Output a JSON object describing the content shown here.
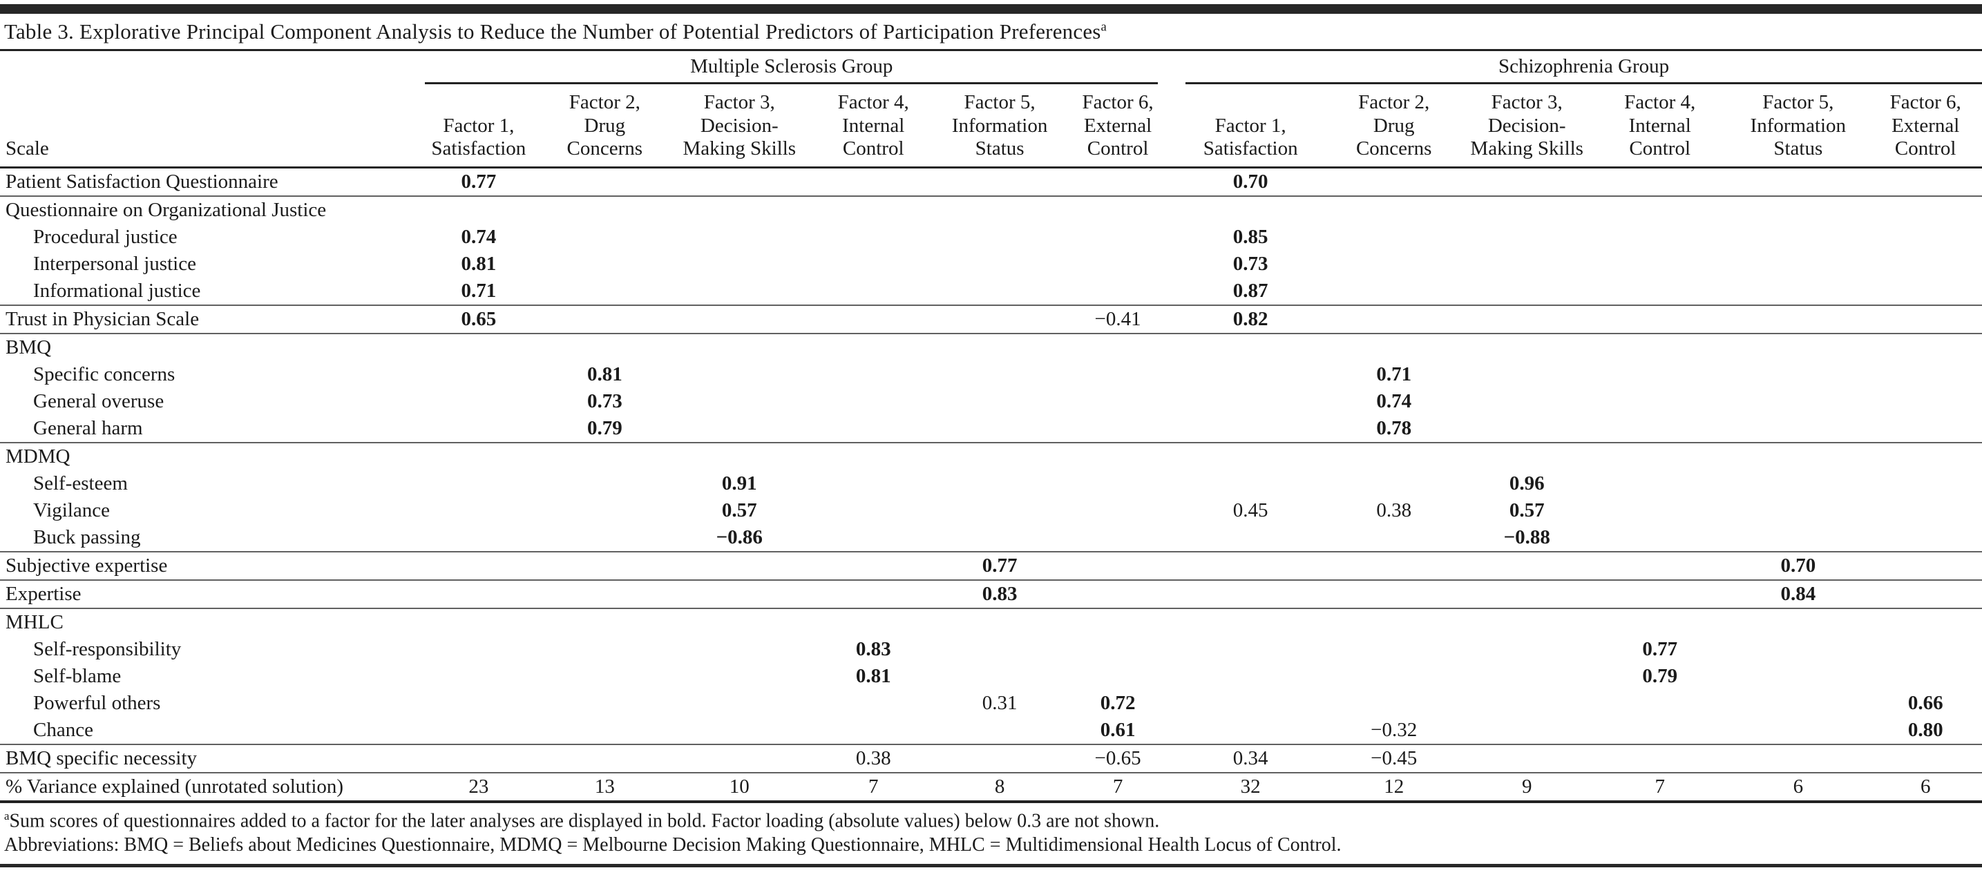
{
  "table": {
    "title": "Table 3. Explorative Principal Component Analysis to Reduce the Number of Potential Predictors of Participation Preferences",
    "title_superscript": "a",
    "group_headers": [
      "Multiple Sclerosis Group",
      "Schizophrenia Group"
    ],
    "scale_column_header": "Scale",
    "factor_columns": [
      {
        "lines": [
          "Factor 1,",
          "Satisfaction"
        ]
      },
      {
        "lines": [
          "Factor 2,",
          "Drug",
          "Concerns"
        ]
      },
      {
        "lines": [
          "Factor 3,",
          "Decision-",
          "Making Skills"
        ]
      },
      {
        "lines": [
          "Factor 4,",
          "Internal",
          "Control"
        ]
      },
      {
        "lines": [
          "Factor 5,",
          "Information",
          "Status"
        ]
      },
      {
        "lines": [
          "Factor 6,",
          "External",
          "Control"
        ]
      }
    ],
    "rows": [
      {
        "label": "Patient Satisfaction Questionnaire",
        "indent": false,
        "rule_after": true,
        "cells": [
          {
            "col": 0,
            "v": "0.77",
            "b": true
          },
          {
            "col": 6,
            "v": "0.70",
            "b": true
          }
        ]
      },
      {
        "label": "Questionnaire on Organizational Justice",
        "indent": false,
        "rule_after": false,
        "cells": []
      },
      {
        "label": "Procedural justice",
        "indent": true,
        "rule_after": false,
        "cells": [
          {
            "col": 0,
            "v": "0.74",
            "b": true
          },
          {
            "col": 6,
            "v": "0.85",
            "b": true
          }
        ]
      },
      {
        "label": "Interpersonal justice",
        "indent": true,
        "rule_after": false,
        "cells": [
          {
            "col": 0,
            "v": "0.81",
            "b": true
          },
          {
            "col": 6,
            "v": "0.73",
            "b": true
          }
        ]
      },
      {
        "label": "Informational justice",
        "indent": true,
        "rule_after": true,
        "cells": [
          {
            "col": 0,
            "v": "0.71",
            "b": true
          },
          {
            "col": 6,
            "v": "0.87",
            "b": true
          }
        ]
      },
      {
        "label": "Trust in Physician Scale",
        "indent": false,
        "rule_after": true,
        "cells": [
          {
            "col": 0,
            "v": "0.65",
            "b": true
          },
          {
            "col": 5,
            "v": "−0.41",
            "b": false
          },
          {
            "col": 6,
            "v": "0.82",
            "b": true
          }
        ]
      },
      {
        "label": "BMQ",
        "indent": false,
        "rule_after": false,
        "cells": []
      },
      {
        "label": "Specific concerns",
        "indent": true,
        "rule_after": false,
        "cells": [
          {
            "col": 1,
            "v": "0.81",
            "b": true
          },
          {
            "col": 7,
            "v": "0.71",
            "b": true
          }
        ]
      },
      {
        "label": "General overuse",
        "indent": true,
        "rule_after": false,
        "cells": [
          {
            "col": 1,
            "v": "0.73",
            "b": true
          },
          {
            "col": 7,
            "v": "0.74",
            "b": true
          }
        ]
      },
      {
        "label": "General harm",
        "indent": true,
        "rule_after": true,
        "cells": [
          {
            "col": 1,
            "v": "0.79",
            "b": true
          },
          {
            "col": 7,
            "v": "0.78",
            "b": true
          }
        ]
      },
      {
        "label": "MDMQ",
        "indent": false,
        "rule_after": false,
        "cells": []
      },
      {
        "label": "Self-esteem",
        "indent": true,
        "rule_after": false,
        "cells": [
          {
            "col": 2,
            "v": "0.91",
            "b": true
          },
          {
            "col": 8,
            "v": "0.96",
            "b": true
          }
        ]
      },
      {
        "label": "Vigilance",
        "indent": true,
        "rule_after": false,
        "cells": [
          {
            "col": 2,
            "v": "0.57",
            "b": true
          },
          {
            "col": 6,
            "v": "0.45",
            "b": false
          },
          {
            "col": 7,
            "v": "0.38",
            "b": false
          },
          {
            "col": 8,
            "v": "0.57",
            "b": true
          }
        ]
      },
      {
        "label": "Buck passing",
        "indent": true,
        "rule_after": true,
        "cells": [
          {
            "col": 2,
            "v": "−0.86",
            "b": true
          },
          {
            "col": 8,
            "v": "−0.88",
            "b": true
          }
        ]
      },
      {
        "label": "Subjective expertise",
        "indent": false,
        "rule_after": true,
        "cells": [
          {
            "col": 4,
            "v": "0.77",
            "b": true
          },
          {
            "col": 10,
            "v": "0.70",
            "b": true
          }
        ]
      },
      {
        "label": "Expertise",
        "indent": false,
        "rule_after": true,
        "cells": [
          {
            "col": 4,
            "v": "0.83",
            "b": true
          },
          {
            "col": 10,
            "v": "0.84",
            "b": true
          }
        ]
      },
      {
        "label": "MHLC",
        "indent": false,
        "rule_after": false,
        "cells": []
      },
      {
        "label": "Self-responsibility",
        "indent": true,
        "rule_after": false,
        "cells": [
          {
            "col": 3,
            "v": "0.83",
            "b": true
          },
          {
            "col": 9,
            "v": "0.77",
            "b": true
          }
        ]
      },
      {
        "label": "Self-blame",
        "indent": true,
        "rule_after": false,
        "cells": [
          {
            "col": 3,
            "v": "0.81",
            "b": true
          },
          {
            "col": 9,
            "v": "0.79",
            "b": true
          }
        ]
      },
      {
        "label": "Powerful others",
        "indent": true,
        "rule_after": false,
        "cells": [
          {
            "col": 4,
            "v": "0.31",
            "b": false
          },
          {
            "col": 5,
            "v": "0.72",
            "b": true
          },
          {
            "col": 11,
            "v": "0.66",
            "b": true
          }
        ]
      },
      {
        "label": "Chance",
        "indent": true,
        "rule_after": true,
        "cells": [
          {
            "col": 5,
            "v": "0.61",
            "b": true
          },
          {
            "col": 7,
            "v": "−0.32",
            "b": false
          },
          {
            "col": 11,
            "v": "0.80",
            "b": true
          }
        ]
      },
      {
        "label": "BMQ specific necessity",
        "indent": false,
        "rule_after": true,
        "cells": [
          {
            "col": 3,
            "v": "0.38",
            "b": false
          },
          {
            "col": 5,
            "v": "−0.65",
            "b": false
          },
          {
            "col": 6,
            "v": "0.34",
            "b": false
          },
          {
            "col": 7,
            "v": "−0.45",
            "b": false
          }
        ]
      },
      {
        "label": "% Variance explained (unrotated solution)",
        "indent": false,
        "rule_after": false,
        "cells": [
          {
            "col": 0,
            "v": "23",
            "b": false
          },
          {
            "col": 1,
            "v": "13",
            "b": false
          },
          {
            "col": 2,
            "v": "10",
            "b": false
          },
          {
            "col": 3,
            "v": "7",
            "b": false
          },
          {
            "col": 4,
            "v": "8",
            "b": false
          },
          {
            "col": 5,
            "v": "7",
            "b": false
          },
          {
            "col": 6,
            "v": "32",
            "b": false
          },
          {
            "col": 7,
            "v": "12",
            "b": false
          },
          {
            "col": 8,
            "v": "9",
            "b": false
          },
          {
            "col": 9,
            "v": "7",
            "b": false
          },
          {
            "col": 10,
            "v": "6",
            "b": false
          },
          {
            "col": 11,
            "v": "6",
            "b": false
          }
        ]
      }
    ],
    "footnotes": [
      {
        "marker": "a",
        "text": "Sum scores of questionnaires added to a factor for the later analyses are displayed in bold. Factor loading (absolute values) below 0.3 are not shown."
      },
      {
        "marker": "",
        "text": "Abbreviations: BMQ = Beliefs about Medicines Questionnaire, MDMQ = Melbourne Decision Making Questionnaire, MHLC = Multidimensional Health Locus of Control."
      }
    ],
    "colors": {
      "heavy_rule": "#222222",
      "thin_rule": "#616161",
      "bar": "#272727",
      "text": "#1b1b1b"
    }
  }
}
